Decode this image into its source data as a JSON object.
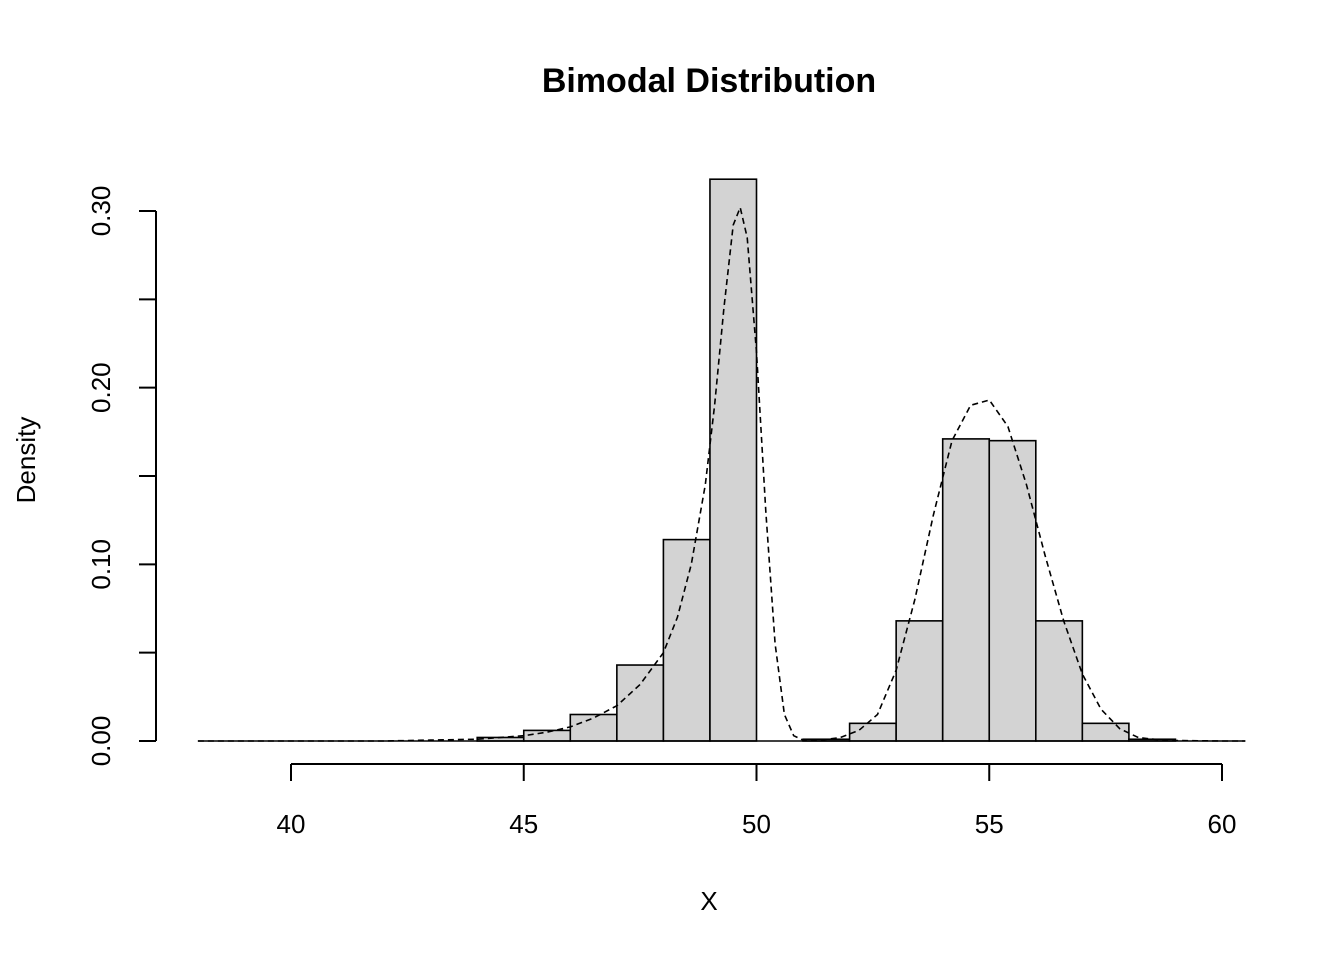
{
  "chart_data": {
    "type": "bar",
    "title": "Bimodal Distribution",
    "xlabel": "X",
    "ylabel": "Density",
    "xlim": [
      38,
      60.5
    ],
    "ylim": [
      0,
      0.32
    ],
    "x_axis_range": [
      40,
      60
    ],
    "x_ticks": [
      40,
      45,
      50,
      55,
      60
    ],
    "x_tick_labels": [
      "40",
      "45",
      "50",
      "55",
      "60"
    ],
    "y_ticks": [
      0,
      0.05,
      0.1,
      0.15,
      0.2,
      0.25,
      0.3
    ],
    "y_tick_labels": [
      "0.00",
      "",
      "0.10",
      "",
      "0.20",
      "",
      "0.30"
    ],
    "bar_fill": "#d3d3d3",
    "bins": [
      {
        "x0": 44,
        "x1": 45,
        "density": 0.002
      },
      {
        "x0": 45,
        "x1": 46,
        "density": 0.006
      },
      {
        "x0": 46,
        "x1": 47,
        "density": 0.015
      },
      {
        "x0": 47,
        "x1": 48,
        "density": 0.043
      },
      {
        "x0": 48,
        "x1": 49,
        "density": 0.114
      },
      {
        "x0": 49,
        "x1": 50,
        "density": 0.318
      },
      {
        "x0": 50,
        "x1": 51,
        "density": 0.0
      },
      {
        "x0": 51,
        "x1": 52,
        "density": 0.001
      },
      {
        "x0": 52,
        "x1": 53,
        "density": 0.01
      },
      {
        "x0": 53,
        "x1": 54,
        "density": 0.068
      },
      {
        "x0": 54,
        "x1": 55,
        "density": 0.171
      },
      {
        "x0": 55,
        "x1": 56,
        "density": 0.17
      },
      {
        "x0": 56,
        "x1": 57,
        "density": 0.068
      },
      {
        "x0": 57,
        "x1": 58,
        "density": 0.01
      },
      {
        "x0": 58,
        "x1": 59,
        "density": 0.001
      }
    ],
    "density_line": {
      "x": [
        38,
        40,
        42,
        43,
        44,
        45,
        45.5,
        46,
        46.5,
        47,
        47.5,
        48,
        48.3,
        48.6,
        48.9,
        49.1,
        49.3,
        49.5,
        49.65,
        49.8,
        50.0,
        50.2,
        50.4,
        50.6,
        50.8,
        51.0,
        51.4,
        51.8,
        52.2,
        52.6,
        53.0,
        53.4,
        53.8,
        54.2,
        54.6,
        55.0,
        55.4,
        55.8,
        56.2,
        56.6,
        57.0,
        57.4,
        57.8,
        58.2,
        58.6,
        59.0,
        60,
        60.5
      ],
      "y": [
        0,
        0,
        0,
        0.0005,
        0.001,
        0.003,
        0.005,
        0.008,
        0.013,
        0.02,
        0.032,
        0.05,
        0.07,
        0.1,
        0.145,
        0.19,
        0.245,
        0.292,
        0.302,
        0.285,
        0.22,
        0.13,
        0.055,
        0.015,
        0.003,
        0.0005,
        0.0005,
        0.002,
        0.006,
        0.015,
        0.04,
        0.08,
        0.128,
        0.17,
        0.19,
        0.193,
        0.178,
        0.145,
        0.105,
        0.068,
        0.038,
        0.018,
        0.007,
        0.002,
        0.0008,
        0.0003,
        0,
        0
      ]
    }
  }
}
